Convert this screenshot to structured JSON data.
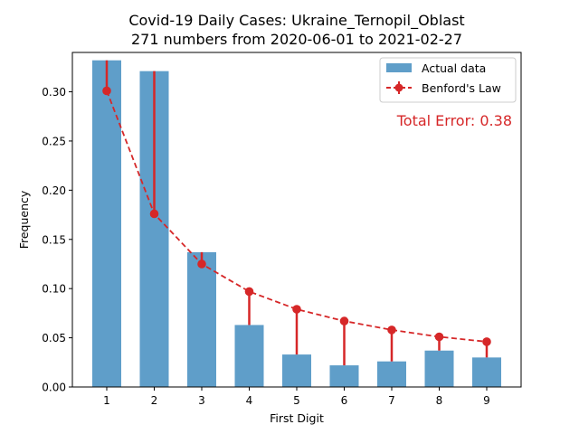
{
  "chart_data": {
    "type": "bar",
    "title": "Covid-19 Daily Cases: Ukraine_Ternopil_Oblast",
    "subtitle": "271 numbers from 2020-06-01 to 2021-02-27",
    "xlabel": "First Digit",
    "ylabel": "Frequency",
    "categories": [
      "1",
      "2",
      "3",
      "4",
      "5",
      "6",
      "7",
      "8",
      "9"
    ],
    "ylim": [
      0,
      0.34
    ],
    "yticks": [
      0.0,
      0.05,
      0.1,
      0.15,
      0.2,
      0.25,
      0.3
    ],
    "ytick_labels": [
      "0.00",
      "0.05",
      "0.10",
      "0.15",
      "0.20",
      "0.25",
      "0.30"
    ],
    "grid": false,
    "legend_position": "top-right",
    "series": [
      {
        "name": "Actual data",
        "type": "bar",
        "color": "#5f9ec9",
        "values": [
          0.332,
          0.321,
          0.137,
          0.063,
          0.033,
          0.022,
          0.026,
          0.037,
          0.03
        ]
      },
      {
        "name": "Benford's Law",
        "type": "line",
        "style": "dashed",
        "color": "#d62728",
        "values": [
          0.301,
          0.176,
          0.125,
          0.097,
          0.079,
          0.067,
          0.058,
          0.051,
          0.046
        ]
      }
    ],
    "annotation": {
      "text": "Total Error: 0.38",
      "color": "#d62728"
    }
  }
}
